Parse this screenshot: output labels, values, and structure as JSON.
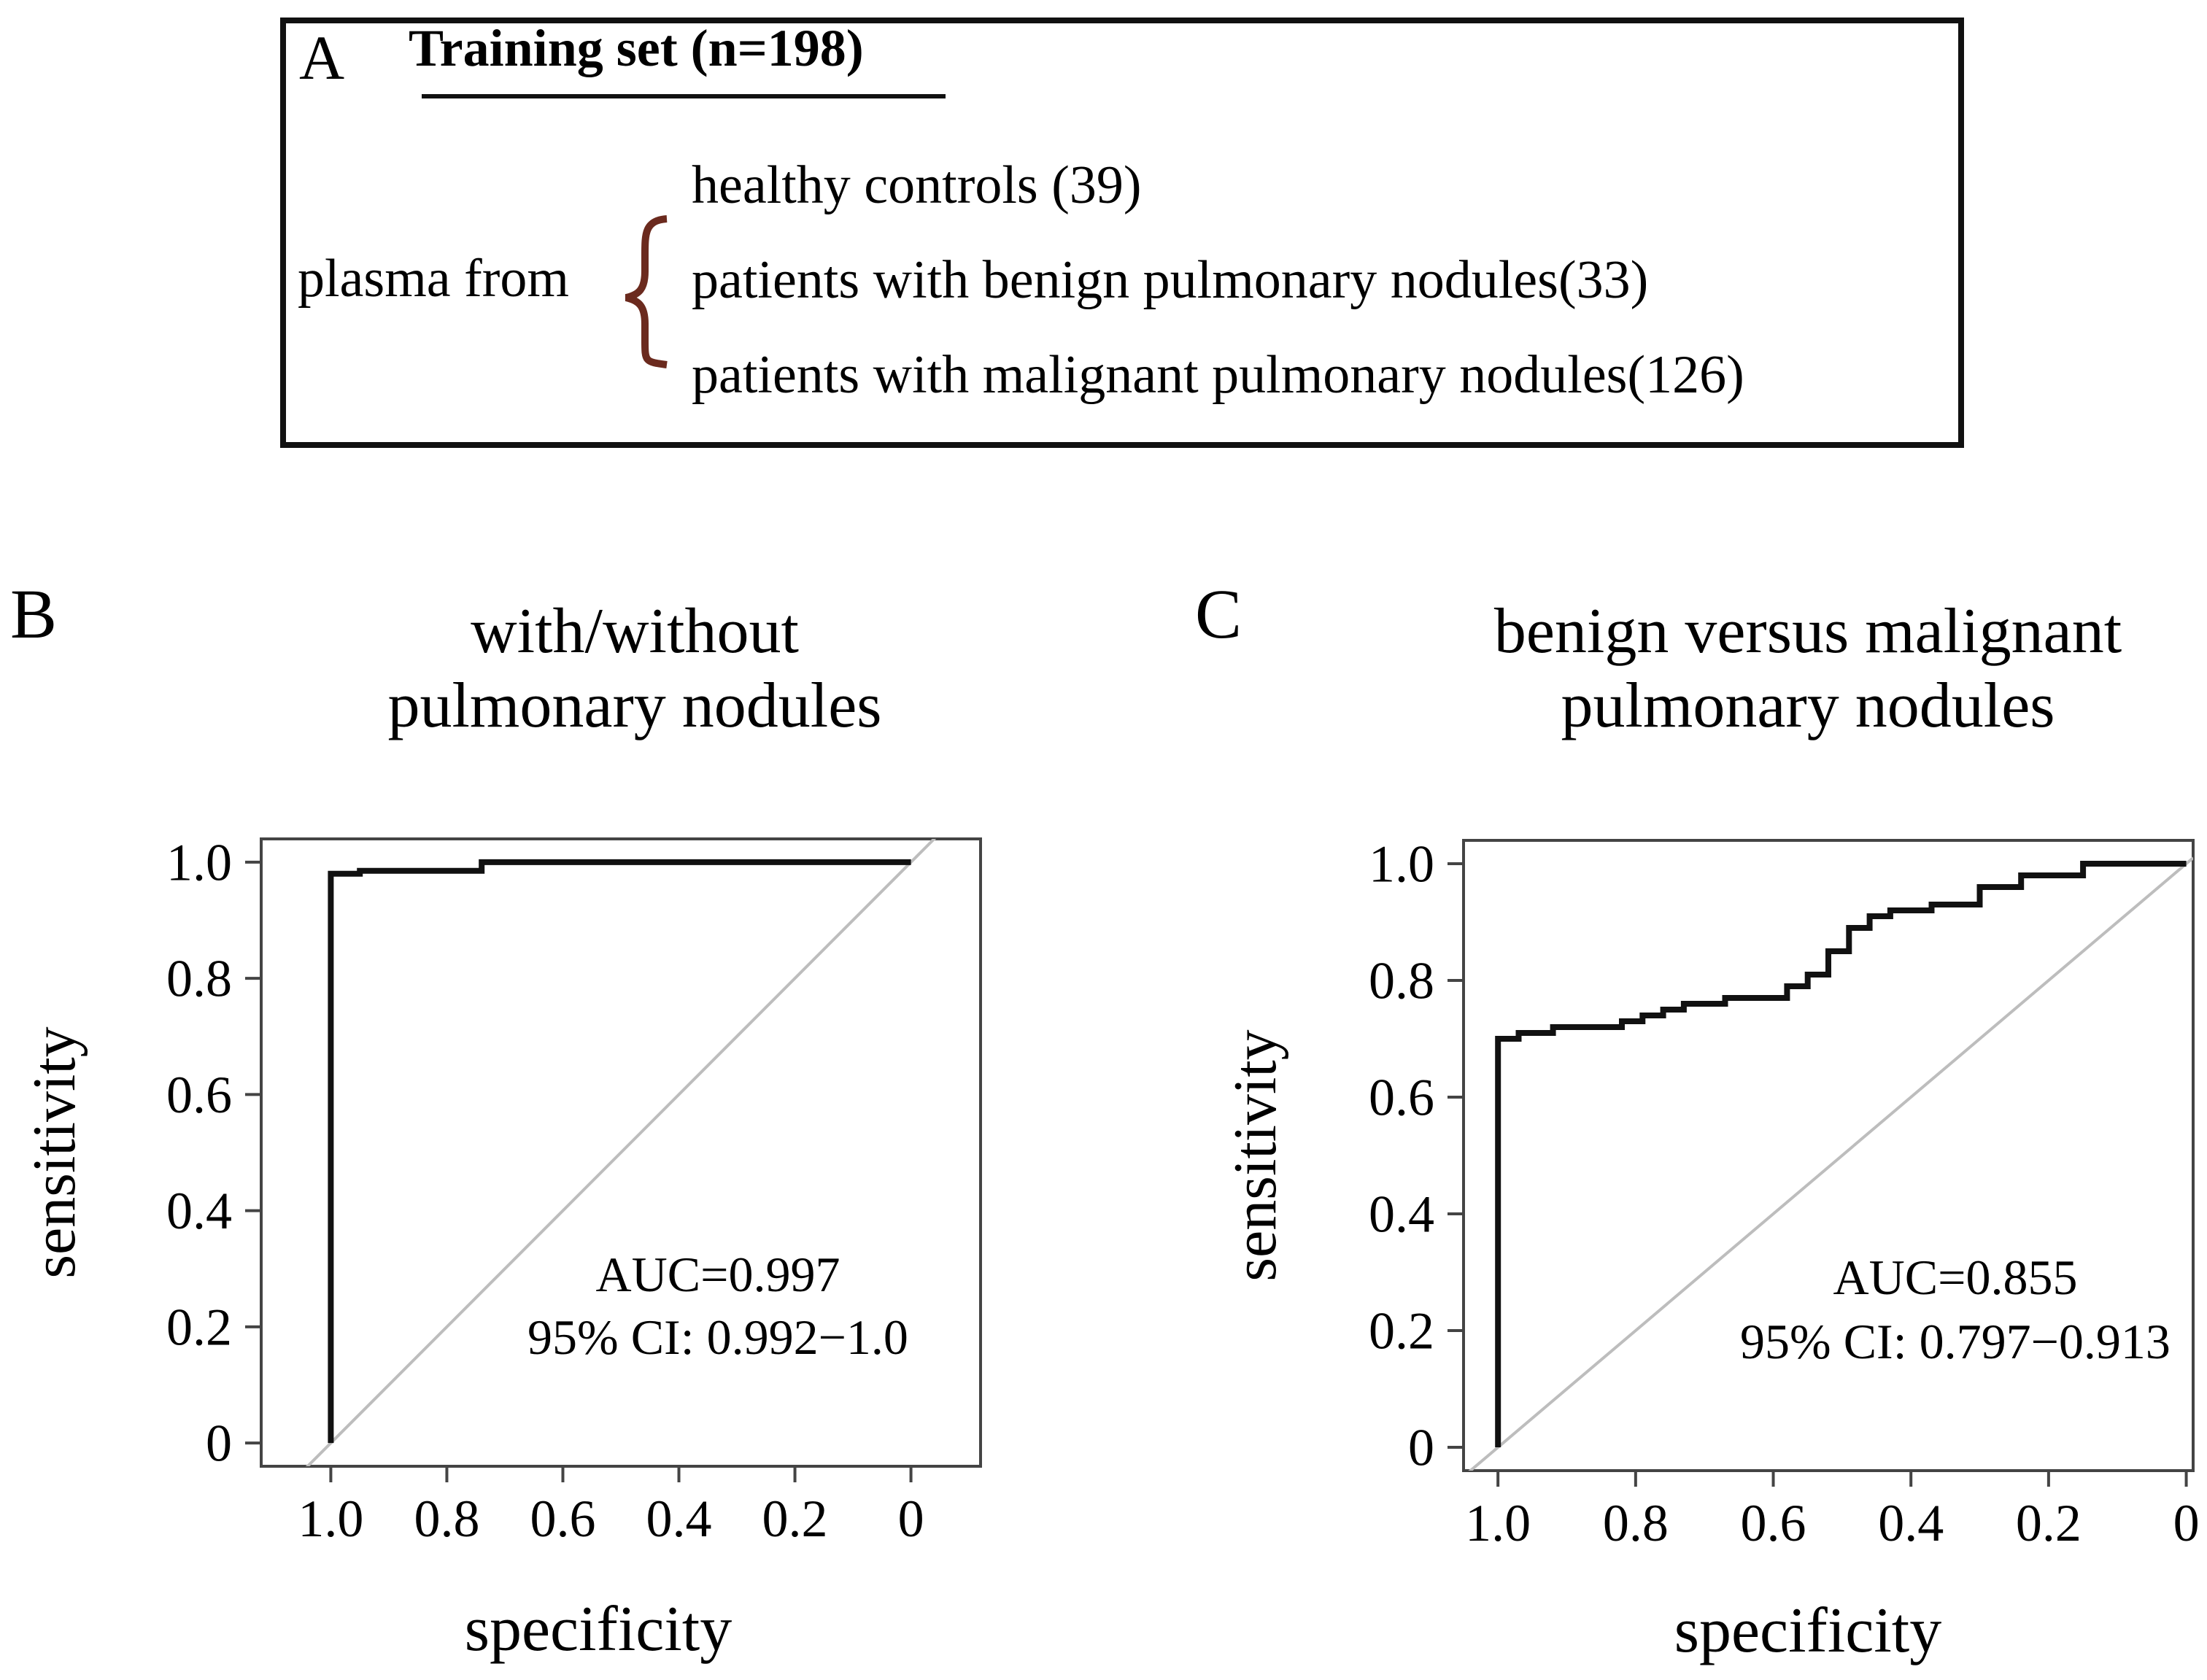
{
  "panel_a": {
    "letter": "A",
    "title": "Training set (n=198)",
    "source_label": "plasma from",
    "groups": [
      "healthy controls (39)",
      "patients with benign pulmonary nodules(33)",
      "patients with malignant pulmonary nodules(126)"
    ],
    "colors": {
      "brace": "#6b2a1e"
    }
  },
  "chart_data": [
    {
      "type": "line",
      "panel": "B",
      "title": "with/without\npulmonary nodules",
      "title_lines": [
        "with/without",
        "pulmonary nodules"
      ],
      "xlabel": "specificity",
      "ylabel": "sensitivity",
      "xlim": [
        1.12,
        -0.12
      ],
      "ylim": [
        -0.04,
        1.04
      ],
      "xticks": [
        1.0,
        0.8,
        0.6,
        0.4,
        0.2,
        0
      ],
      "xtick_labels": [
        "1.0",
        "0.8",
        "0.6",
        "0.4",
        "0.2",
        "0"
      ],
      "yticks": [
        0,
        0.2,
        0.4,
        0.6,
        0.8,
        1.0
      ],
      "ytick_labels": [
        "0",
        "0.2",
        "0.4",
        "0.6",
        "0.8",
        "1.0"
      ],
      "reference_line": "diagonal",
      "annotation": [
        "AUC=0.997",
        "95% CI: 0.992−1.0"
      ],
      "auc": 0.997,
      "ci": [
        0.992,
        1.0
      ],
      "series": [
        {
          "name": "ROC",
          "points": [
            [
              1.0,
              0.0
            ],
            [
              1.0,
              0.98
            ],
            [
              0.95,
              0.98
            ],
            [
              0.95,
              0.985
            ],
            [
              0.74,
              0.985
            ],
            [
              0.74,
              1.0
            ],
            [
              0.0,
              1.0
            ]
          ]
        }
      ]
    },
    {
      "type": "line",
      "panel": "C",
      "title": "benign versus malignant\npulmonary nodules",
      "title_lines": [
        "benign versus malignant",
        "pulmonary nodules"
      ],
      "xlabel": "specificity",
      "ylabel": "sensitivity",
      "xlim": [
        1.05,
        -0.01
      ],
      "ylim": [
        -0.04,
        1.04
      ],
      "xticks": [
        1.0,
        0.8,
        0.6,
        0.4,
        0.2,
        0
      ],
      "xtick_labels": [
        "1.0",
        "0.8",
        "0.6",
        "0.4",
        "0.2",
        "0"
      ],
      "yticks": [
        0,
        0.2,
        0.4,
        0.6,
        0.8,
        1.0
      ],
      "ytick_labels": [
        "0",
        "0.2",
        "0.4",
        "0.6",
        "0.8",
        "1.0"
      ],
      "reference_line": "diagonal",
      "annotation": [
        "AUC=0.855",
        "95% CI: 0.797−0.913"
      ],
      "auc": 0.855,
      "ci": [
        0.797,
        0.913
      ],
      "series": [
        {
          "name": "ROC",
          "points": [
            [
              1.0,
              0.0
            ],
            [
              1.0,
              0.7
            ],
            [
              0.97,
              0.7
            ],
            [
              0.97,
              0.71
            ],
            [
              0.92,
              0.71
            ],
            [
              0.92,
              0.72
            ],
            [
              0.82,
              0.72
            ],
            [
              0.82,
              0.73
            ],
            [
              0.79,
              0.73
            ],
            [
              0.79,
              0.74
            ],
            [
              0.76,
              0.74
            ],
            [
              0.76,
              0.75
            ],
            [
              0.73,
              0.75
            ],
            [
              0.73,
              0.76
            ],
            [
              0.67,
              0.76
            ],
            [
              0.67,
              0.77
            ],
            [
              0.58,
              0.77
            ],
            [
              0.58,
              0.79
            ],
            [
              0.55,
              0.79
            ],
            [
              0.55,
              0.81
            ],
            [
              0.52,
              0.81
            ],
            [
              0.52,
              0.85
            ],
            [
              0.49,
              0.85
            ],
            [
              0.49,
              0.89
            ],
            [
              0.46,
              0.89
            ],
            [
              0.46,
              0.91
            ],
            [
              0.43,
              0.91
            ],
            [
              0.43,
              0.92
            ],
            [
              0.37,
              0.92
            ],
            [
              0.37,
              0.93
            ],
            [
              0.3,
              0.93
            ],
            [
              0.3,
              0.96
            ],
            [
              0.24,
              0.96
            ],
            [
              0.24,
              0.98
            ],
            [
              0.15,
              0.98
            ],
            [
              0.15,
              1.0
            ],
            [
              0.0,
              1.0
            ]
          ]
        }
      ]
    }
  ]
}
